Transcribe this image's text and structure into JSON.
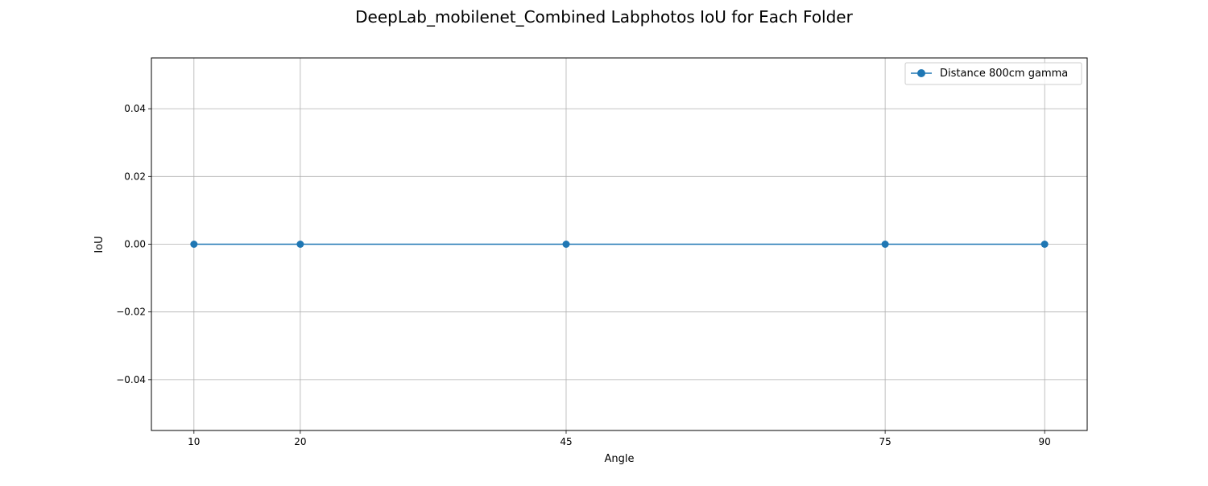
{
  "chart_data": {
    "type": "line",
    "title": "DeepLab_mobilenet_Combined Labphotos IoU for Each Folder",
    "xlabel": "Angle",
    "ylabel": "IoU",
    "x": [
      10,
      20,
      45,
      75,
      90
    ],
    "x_tick_labels": [
      "10",
      "20",
      "45",
      "75",
      "90"
    ],
    "xlim": [
      6,
      94
    ],
    "ylim": [
      -0.055,
      0.055
    ],
    "y_ticks": [
      -0.04,
      -0.02,
      0.0,
      0.02,
      0.04
    ],
    "y_tick_labels": [
      "−0.04",
      "−0.02",
      "0.00",
      "0.02",
      "0.04"
    ],
    "grid": true,
    "legend_position": "top-right",
    "series": [
      {
        "name": "Distance 800cm gamma",
        "values": [
          0.0,
          0.0,
          0.0,
          0.0,
          0.0
        ],
        "color": "#1f77b4",
        "marker": "circle"
      }
    ]
  },
  "colors": {
    "grid": "#b0b0b0",
    "axes": "#000000",
    "legend_border": "#cccccc"
  }
}
